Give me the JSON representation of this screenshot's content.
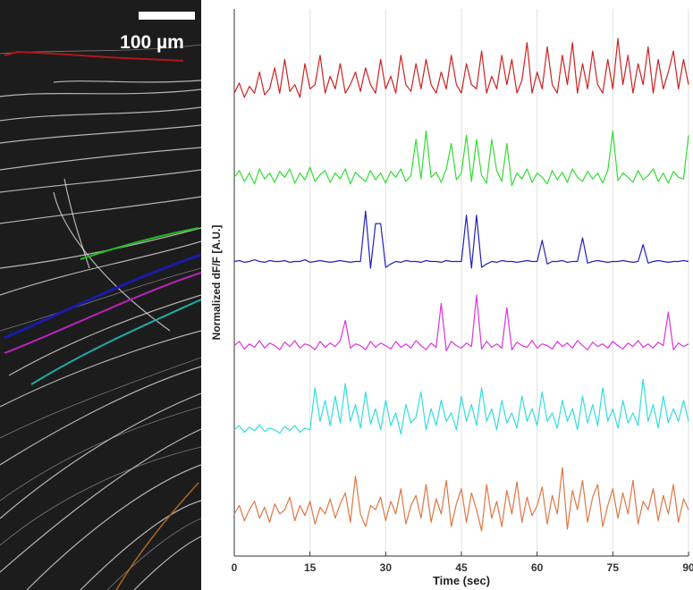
{
  "image": {
    "scale_bar_label": "100 µm"
  },
  "chart_data": {
    "type": "line",
    "xlabel": "Time (sec)",
    "ylabel": "Normalized dF/F [A.U.]",
    "x": [
      0,
      1,
      2,
      3,
      4,
      5,
      6,
      7,
      8,
      9,
      10,
      11,
      12,
      13,
      14,
      15,
      16,
      17,
      18,
      19,
      20,
      21,
      22,
      23,
      24,
      25,
      26,
      27,
      28,
      29,
      30,
      31,
      32,
      33,
      34,
      35,
      36,
      37,
      38,
      39,
      40,
      41,
      42,
      43,
      44,
      45,
      46,
      47,
      48,
      49,
      50,
      51,
      52,
      53,
      54,
      55,
      56,
      57,
      58,
      59,
      60,
      61,
      62,
      63,
      64,
      65,
      66,
      67,
      68,
      69,
      70,
      71,
      72,
      73,
      74,
      75,
      76,
      77,
      78,
      79,
      80,
      81,
      82,
      83,
      84,
      85,
      86,
      87,
      88,
      89,
      90
    ],
    "xlim": [
      0,
      90
    ],
    "xticks": [
      0,
      15,
      30,
      45,
      60,
      75,
      90
    ],
    "ylim": [
      0,
      6.5
    ],
    "grid": true,
    "series": [
      {
        "color": "#cc2222",
        "values": [
          5.5,
          5.62,
          5.45,
          5.58,
          5.5,
          5.75,
          5.48,
          5.55,
          5.8,
          5.5,
          5.9,
          5.52,
          5.6,
          5.45,
          5.85,
          5.55,
          5.6,
          5.95,
          5.5,
          5.7,
          5.55,
          5.85,
          5.5,
          5.6,
          5.75,
          5.52,
          5.8,
          5.6,
          5.5,
          5.9,
          5.55,
          5.7,
          5.5,
          5.95,
          5.6,
          5.52,
          5.85,
          5.55,
          5.9,
          5.6,
          5.5,
          5.75,
          5.55,
          5.95,
          5.6,
          5.5,
          5.85,
          5.6,
          5.55,
          6.0,
          5.5,
          5.7,
          5.55,
          5.95,
          5.6,
          5.9,
          5.5,
          5.65,
          6.1,
          5.5,
          5.75,
          5.55,
          6.05,
          5.6,
          5.5,
          5.95,
          5.6,
          6.1,
          5.5,
          5.85,
          5.55,
          6.0,
          5.6,
          5.5,
          5.9,
          5.55,
          6.15,
          5.6,
          5.95,
          5.5,
          5.85,
          5.6,
          6.05,
          5.5,
          5.9,
          5.55,
          5.75,
          6.0,
          5.55,
          5.9,
          5.6
        ]
      },
      {
        "color": "#33dd33",
        "values": [
          4.5,
          4.58,
          4.45,
          4.55,
          4.42,
          4.6,
          4.48,
          4.55,
          4.44,
          4.57,
          4.5,
          4.6,
          4.43,
          4.55,
          4.47,
          4.62,
          4.45,
          4.53,
          4.58,
          4.44,
          4.55,
          4.48,
          4.6,
          4.42,
          4.56,
          4.5,
          4.45,
          4.58,
          4.47,
          4.55,
          4.43,
          4.57,
          4.5,
          4.6,
          4.45,
          4.52,
          4.95,
          4.48,
          5.05,
          4.5,
          4.56,
          4.44,
          4.6,
          4.9,
          4.47,
          4.55,
          5.0,
          4.45,
          4.95,
          4.52,
          4.43,
          4.95,
          4.58,
          4.45,
          4.9,
          4.4,
          4.55,
          4.48,
          4.6,
          4.44,
          4.55,
          4.5,
          4.42,
          4.58,
          4.47,
          4.56,
          4.44,
          4.6,
          4.5,
          4.45,
          4.57,
          4.48,
          4.55,
          4.43,
          4.58,
          5.05,
          4.46,
          4.55,
          4.5,
          4.44,
          4.58,
          4.47,
          4.52,
          4.6,
          4.45,
          4.55,
          4.43,
          4.57,
          4.5,
          4.48,
          5.0
        ]
      },
      {
        "color": "#2222bb",
        "values": [
          3.5,
          3.51,
          3.49,
          3.5,
          3.52,
          3.5,
          3.49,
          3.51,
          3.5,
          3.5,
          3.51,
          3.49,
          3.5,
          3.5,
          3.52,
          3.49,
          3.5,
          3.51,
          3.5,
          3.49,
          3.5,
          3.51,
          3.5,
          3.49,
          3.5,
          3.5,
          4.1,
          3.42,
          3.95,
          3.95,
          3.43,
          3.47,
          3.5,
          3.49,
          3.51,
          3.5,
          3.5,
          3.49,
          3.51,
          3.5,
          3.5,
          3.49,
          3.51,
          3.5,
          3.5,
          3.5,
          4.05,
          3.42,
          4.05,
          3.43,
          3.47,
          3.5,
          3.49,
          3.51,
          3.5,
          3.5,
          3.49,
          3.5,
          3.51,
          3.5,
          3.5,
          3.75,
          3.47,
          3.5,
          3.5,
          3.51,
          3.49,
          3.5,
          3.5,
          3.78,
          3.48,
          3.5,
          3.51,
          3.5,
          3.49,
          3.5,
          3.5,
          3.51,
          3.5,
          3.49,
          3.5,
          3.7,
          3.48,
          3.5,
          3.51,
          3.5,
          3.49,
          3.5,
          3.5,
          3.51,
          3.5
        ]
      },
      {
        "color": "#dd33dd",
        "values": [
          2.5,
          2.55,
          2.46,
          2.52,
          2.48,
          2.56,
          2.47,
          2.53,
          2.5,
          2.45,
          2.54,
          2.49,
          2.56,
          2.47,
          2.52,
          2.5,
          2.45,
          2.55,
          2.48,
          2.53,
          2.49,
          2.56,
          2.8,
          2.47,
          2.52,
          2.5,
          2.45,
          2.55,
          2.48,
          2.53,
          2.5,
          2.46,
          2.55,
          2.48,
          2.52,
          2.47,
          2.56,
          2.5,
          2.45,
          2.53,
          2.48,
          3.0,
          2.44,
          2.55,
          2.5,
          2.47,
          2.53,
          2.49,
          3.1,
          2.46,
          2.55,
          2.48,
          2.52,
          2.47,
          2.95,
          2.45,
          2.54,
          2.5,
          2.48,
          2.56,
          2.47,
          2.52,
          2.5,
          2.46,
          2.55,
          2.49,
          2.53,
          2.47,
          2.56,
          2.5,
          2.45,
          2.54,
          2.49,
          2.52,
          2.47,
          2.55,
          2.5,
          2.46,
          2.53,
          2.49,
          2.56,
          2.48,
          2.52,
          2.47,
          2.54,
          2.5,
          2.9,
          2.45,
          2.53,
          2.49,
          2.52
        ]
      },
      {
        "color": "#33dddd",
        "values": [
          1.5,
          1.55,
          1.47,
          1.53,
          1.49,
          1.56,
          1.48,
          1.52,
          1.5,
          1.46,
          1.54,
          1.49,
          1.55,
          1.47,
          1.52,
          1.5,
          2.0,
          1.6,
          1.85,
          1.55,
          1.9,
          1.58,
          2.05,
          1.6,
          1.8,
          1.52,
          1.95,
          1.57,
          1.75,
          1.5,
          1.85,
          1.55,
          1.7,
          1.45,
          1.8,
          1.58,
          1.65,
          1.95,
          1.5,
          1.75,
          1.55,
          1.85,
          1.6,
          1.7,
          1.5,
          1.9,
          1.6,
          1.8,
          1.55,
          2.0,
          1.6,
          1.75,
          1.5,
          1.85,
          1.58,
          1.7,
          1.52,
          1.9,
          1.6,
          1.75,
          1.55,
          1.95,
          1.6,
          1.7,
          1.52,
          1.85,
          1.6,
          1.75,
          1.5,
          1.9,
          1.58,
          1.8,
          1.55,
          2.0,
          1.6,
          1.75,
          1.52,
          1.85,
          1.58,
          1.7,
          1.55,
          2.1,
          1.6,
          1.8,
          1.52,
          1.9,
          1.58,
          1.75,
          1.6,
          1.85,
          1.6
        ]
      },
      {
        "color": "#dd7744",
        "values": [
          0.5,
          0.6,
          0.42,
          0.55,
          0.65,
          0.45,
          0.58,
          0.4,
          0.62,
          0.5,
          0.55,
          0.7,
          0.42,
          0.6,
          0.48,
          0.65,
          0.38,
          0.58,
          0.5,
          0.68,
          0.45,
          0.62,
          0.75,
          0.4,
          0.95,
          0.5,
          0.35,
          0.6,
          0.55,
          0.7,
          0.42,
          0.65,
          0.5,
          0.8,
          0.38,
          0.6,
          0.72,
          0.45,
          0.85,
          0.4,
          0.68,
          0.5,
          0.9,
          0.35,
          0.62,
          0.8,
          0.4,
          0.75,
          0.55,
          0.3,
          0.85,
          0.45,
          0.65,
          0.35,
          0.78,
          0.5,
          0.88,
          0.4,
          0.7,
          0.48,
          0.6,
          0.82,
          0.38,
          0.72,
          0.5,
          1.05,
          0.32,
          0.78,
          0.55,
          0.9,
          0.4,
          0.7,
          0.85,
          0.35,
          0.6,
          0.8,
          0.45,
          0.75,
          0.5,
          0.9,
          0.38,
          0.65,
          0.55,
          0.8,
          0.42,
          0.72,
          0.5,
          0.85,
          0.4,
          0.68,
          0.55
        ]
      }
    ]
  }
}
